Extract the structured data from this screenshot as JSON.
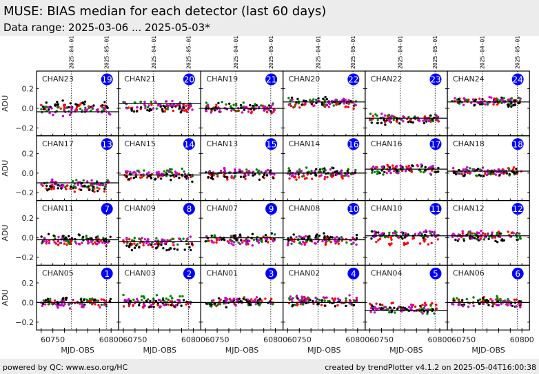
{
  "header": {
    "title": "MUSE: BIAS median for each detector (last 60 days)",
    "subtitle": "Data range: 2025-03-06 ... 2025-05-03*"
  },
  "footer": {
    "left": "powered by QC: www.eso.org/HC",
    "right": "created by trendPlotter v4.1.2 on 2025-05-04T16:00:38"
  },
  "chart_data": {
    "type": "scatter",
    "xlabel": "MJD-OBS",
    "ylabel": "ADU",
    "xlim": [
      60736,
      60806.5
    ],
    "ylim": [
      -0.28,
      0.38
    ],
    "xticks": [
      60750,
      60800
    ],
    "yticks": [
      -0.2,
      0.0,
      0.2
    ],
    "ytick_labels": [
      "−0.2",
      "0.0",
      "0.2"
    ],
    "date_markers": [
      {
        "mjd": 60766,
        "label": "2025-04-01"
      },
      {
        "mjd": 60796,
        "label": "2025-05-01"
      }
    ],
    "data_mjd_range": [
      60740,
      60798
    ],
    "series_colors": [
      "#ff0000",
      "#008000",
      "#000000",
      "#cc00cc"
    ],
    "badge_color": "#0000ff",
    "panels": [
      {
        "name": "CHAN23",
        "num": "19",
        "median": -0.035,
        "levels": [
          0.01,
          -0.01,
          0.03,
          -0.03
        ]
      },
      {
        "name": "CHAN21",
        "num": "20",
        "median": 0.05,
        "levels": [
          0.01,
          0.03,
          0.0,
          0.03
        ]
      },
      {
        "name": "CHAN19",
        "num": "21",
        "median": 0.0,
        "levels": [
          -0.01,
          0.02,
          0.01,
          0.0
        ]
      },
      {
        "name": "CHAN20",
        "num": "22",
        "median": 0.065,
        "levels": [
          0.04,
          0.06,
          0.07,
          0.06
        ]
      },
      {
        "name": "CHAN22",
        "num": "23",
        "median": -0.1,
        "levels": [
          -0.11,
          -0.1,
          -0.12,
          -0.1
        ]
      },
      {
        "name": "CHAN24",
        "num": "24",
        "median": 0.065,
        "levels": [
          0.07,
          0.07,
          0.06,
          0.07
        ]
      },
      {
        "name": "CHAN17",
        "num": "13",
        "median": -0.1,
        "levels": [
          -0.15,
          -0.11,
          -0.14,
          -0.1
        ]
      },
      {
        "name": "CHAN15",
        "num": "14",
        "median": -0.02,
        "levels": [
          -0.03,
          0.0,
          -0.05,
          0.0
        ]
      },
      {
        "name": "CHAN13",
        "num": "15",
        "median": 0.0,
        "levels": [
          -0.02,
          0.0,
          -0.02,
          0.01
        ]
      },
      {
        "name": "CHAN14",
        "num": "16",
        "median": 0.0,
        "levels": [
          -0.03,
          0.01,
          0.01,
          0.0
        ]
      },
      {
        "name": "CHAN16",
        "num": "17",
        "median": 0.04,
        "levels": [
          0.05,
          0.03,
          0.04,
          0.04
        ]
      },
      {
        "name": "CHAN18",
        "num": "18",
        "median": 0.02,
        "levels": [
          0.01,
          0.01,
          0.0,
          0.02
        ]
      },
      {
        "name": "CHAN11",
        "num": "7",
        "median": -0.02,
        "levels": [
          -0.05,
          -0.02,
          -0.01,
          -0.03
        ]
      },
      {
        "name": "CHAN09",
        "num": "8",
        "median": -0.04,
        "levels": [
          -0.05,
          -0.04,
          -0.1,
          -0.03
        ]
      },
      {
        "name": "CHAN07",
        "num": "9",
        "median": 0.0,
        "levels": [
          -0.02,
          -0.01,
          0.0,
          -0.03
        ]
      },
      {
        "name": "CHAN08",
        "num": "10",
        "median": -0.02,
        "levels": [
          -0.03,
          -0.02,
          0.0,
          -0.03
        ]
      },
      {
        "name": "CHAN10",
        "num": "11",
        "median": 0.02,
        "levels": [
          -0.03,
          0.03,
          0.02,
          0.03
        ]
      },
      {
        "name": "CHAN12",
        "num": "12",
        "median": 0.02,
        "levels": [
          0.02,
          0.02,
          0.0,
          0.03
        ]
      },
      {
        "name": "CHAN05",
        "num": "1",
        "median": 0.0,
        "levels": [
          0.01,
          0.0,
          0.01,
          -0.02
        ]
      },
      {
        "name": "CHAN03",
        "num": "2",
        "median": 0.0,
        "levels": [
          -0.03,
          0.04,
          -0.01,
          0.0
        ]
      },
      {
        "name": "CHAN01",
        "num": "3",
        "median": 0.0,
        "levels": [
          0.01,
          0.0,
          0.0,
          0.01
        ]
      },
      {
        "name": "CHAN02",
        "num": "4",
        "median": 0.0,
        "levels": [
          0.01,
          0.02,
          0.0,
          0.03
        ]
      },
      {
        "name": "CHAN04",
        "num": "5",
        "median": -0.08,
        "levels": [
          -0.04,
          -0.07,
          -0.06,
          -0.07
        ]
      },
      {
        "name": "CHAN06",
        "num": "6",
        "median": 0.0,
        "levels": [
          0.01,
          0.02,
          0.0,
          -0.02
        ]
      }
    ]
  }
}
